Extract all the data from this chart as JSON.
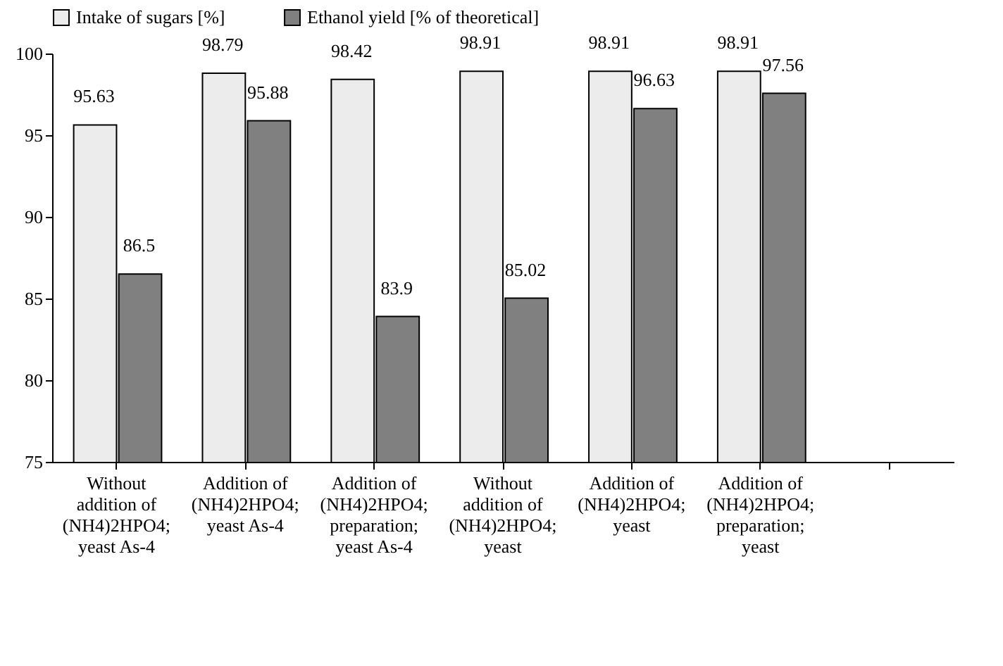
{
  "chart_data": {
    "type": "bar",
    "categories": [
      "Without addition of (NH4)2HPO4; yeast As-4",
      "Addition of (NH4)2HPO4; yeast As-4",
      "Addition of (NH4)2HPO4; preparation; yeast As-4",
      "Without addition of (NH4)2HPO4; yeast",
      "Addition of (NH4)2HPO4; yeast",
      "Addition of (NH4)2HPO4; preparation; yeast",
      null
    ],
    "series": [
      {
        "name": "Intake of sugars [%]",
        "color": "#ececec",
        "values": [
          95.63,
          98.79,
          98.42,
          98.91,
          98.91,
          98.91,
          null
        ]
      },
      {
        "name": "Ethanol yield [% of theoretical]",
        "color": "#808080",
        "values": [
          86.5,
          95.88,
          83.9,
          85.02,
          96.63,
          97.56,
          null
        ]
      }
    ],
    "ylim": [
      75,
      100
    ],
    "yticks": [
      75,
      80,
      85,
      90,
      95,
      100
    ],
    "data_labels": true,
    "legend": "top",
    "grid": false
  }
}
